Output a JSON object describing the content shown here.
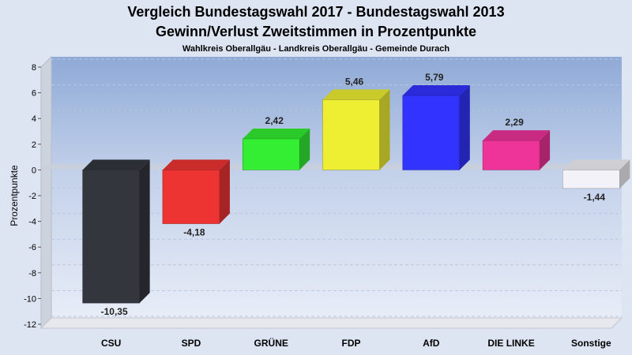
{
  "chart_data": {
    "type": "bar",
    "title": "Vergleich Bundestagswahl 2017 - Bundestagswahl 2013",
    "subtitle": "Gewinn/Verlust Zweitstimmen in Prozentpunkte",
    "caption": "Wahlkreis Oberallgäu - Landkreis Oberallgäu - Gemeinde Durach",
    "ylabel": "Prozentpunkte",
    "xlabel": "",
    "ylim": [
      -12,
      8
    ],
    "yticks": [
      8,
      6,
      4,
      2,
      0,
      -2,
      -4,
      -6,
      -8,
      -10,
      -12
    ],
    "categories": [
      "CSU",
      "SPD",
      "GRÜNE",
      "FDP",
      "AfD",
      "DIE LINKE",
      "Sonstige"
    ],
    "values": [
      -10.35,
      -4.18,
      2.42,
      5.46,
      5.79,
      2.29,
      -1.44
    ],
    "value_labels": [
      "-10,35",
      "-4,18",
      "2,42",
      "5,46",
      "5,79",
      "2,29",
      "-1,44"
    ],
    "colors": [
      "#33363d",
      "#ee3333",
      "#33ee33",
      "#eeee33",
      "#3333ff",
      "#ee3399",
      "#f2f2f8"
    ],
    "grid": true
  }
}
